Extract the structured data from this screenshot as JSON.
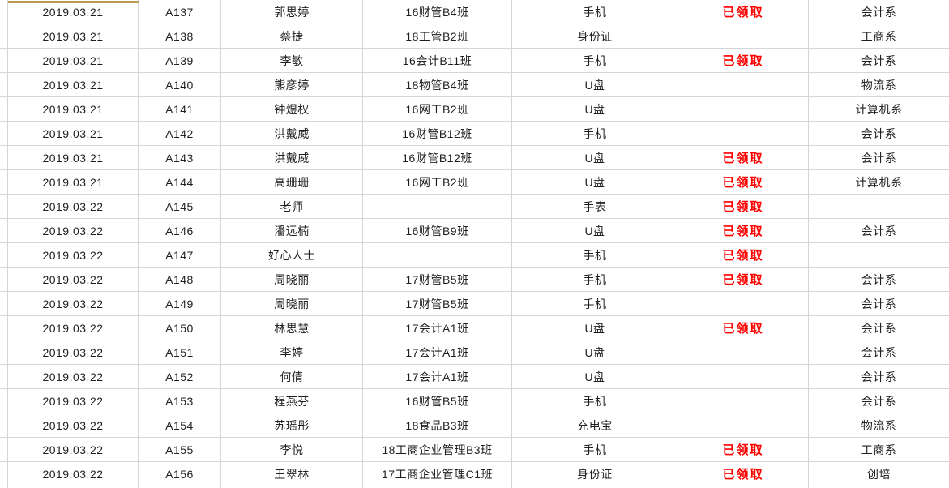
{
  "table": {
    "columns": [
      {
        "key": "date",
        "name": "date"
      },
      {
        "key": "id",
        "name": "item-id"
      },
      {
        "key": "name",
        "name": "person-name"
      },
      {
        "key": "class",
        "name": "class"
      },
      {
        "key": "item",
        "name": "item-type"
      },
      {
        "key": "status",
        "name": "claim-status"
      },
      {
        "key": "dept",
        "name": "department"
      }
    ],
    "rows": [
      {
        "date": "2019.03.21",
        "id": "A137",
        "name": "郭思婷",
        "class": "16财管B4班",
        "item": "手机",
        "status": "已领取",
        "dept": "会计系"
      },
      {
        "date": "2019.03.21",
        "id": "A138",
        "name": "蔡捷",
        "class": "18工管B2班",
        "item": "身份证",
        "status": "",
        "dept": "工商系"
      },
      {
        "date": "2019.03.21",
        "id": "A139",
        "name": "李敏",
        "class": "16会计B11班",
        "item": "手机",
        "status": "已领取",
        "dept": "会计系"
      },
      {
        "date": "2019.03.21",
        "id": "A140",
        "name": "熊彦婷",
        "class": "18物管B4班",
        "item": "U盘",
        "status": "",
        "dept": "物流系"
      },
      {
        "date": "2019.03.21",
        "id": "A141",
        "name": "钟煜权",
        "class": "16网工B2班",
        "item": "U盘",
        "status": "",
        "dept": "计算机系"
      },
      {
        "date": "2019.03.21",
        "id": "A142",
        "name": "洪戴威",
        "class": "16财管B12班",
        "item": "手机",
        "status": "",
        "dept": "会计系"
      },
      {
        "date": "2019.03.21",
        "id": "A143",
        "name": "洪戴威",
        "class": "16财管B12班",
        "item": "U盘",
        "status": "已领取",
        "dept": "会计系"
      },
      {
        "date": "2019.03.21",
        "id": "A144",
        "name": "高珊珊",
        "class": "16网工B2班",
        "item": "U盘",
        "status": "已领取",
        "dept": "计算机系"
      },
      {
        "date": "2019.03.22",
        "id": "A145",
        "name": "老师",
        "class": "",
        "item": "手表",
        "status": "已领取",
        "dept": ""
      },
      {
        "date": "2019.03.22",
        "id": "A146",
        "name": "潘远楠",
        "class": "16财管B9班",
        "item": "U盘",
        "status": "已领取",
        "dept": "会计系"
      },
      {
        "date": "2019.03.22",
        "id": "A147",
        "name": "好心人士",
        "class": "",
        "item": "手机",
        "status": "已领取",
        "dept": ""
      },
      {
        "date": "2019.03.22",
        "id": "A148",
        "name": "周晓丽",
        "class": "17财管B5班",
        "item": "手机",
        "status": "已领取",
        "dept": "会计系"
      },
      {
        "date": "2019.03.22",
        "id": "A149",
        "name": "周晓丽",
        "class": "17财管B5班",
        "item": "手机",
        "status": "",
        "dept": "会计系"
      },
      {
        "date": "2019.03.22",
        "id": "A150",
        "name": "林思慧",
        "class": "17会计A1班",
        "item": "U盘",
        "status": "已领取",
        "dept": "会计系"
      },
      {
        "date": "2019.03.22",
        "id": "A151",
        "name": "李婷",
        "class": "17会计A1班",
        "item": "U盘",
        "status": "",
        "dept": "会计系"
      },
      {
        "date": "2019.03.22",
        "id": "A152",
        "name": "何倩",
        "class": "17会计A1班",
        "item": "U盘",
        "status": "",
        "dept": "会计系"
      },
      {
        "date": "2019.03.22",
        "id": "A153",
        "name": "程燕芬",
        "class": "16财管B5班",
        "item": "手机",
        "status": "",
        "dept": "会计系"
      },
      {
        "date": "2019.03.22",
        "id": "A154",
        "name": "苏瑶彤",
        "class": "18食品B3班",
        "item": "充电宝",
        "status": "",
        "dept": "物流系"
      },
      {
        "date": "2019.03.22",
        "id": "A155",
        "name": "李悦",
        "class": "18工商企业管理B3班",
        "item": "手机",
        "status": "已领取",
        "dept": "工商系"
      },
      {
        "date": "2019.03.22",
        "id": "A156",
        "name": "王翠林",
        "class": "17工商企业管理C1班",
        "item": "身份证",
        "status": "已领取",
        "dept": "创培"
      }
    ],
    "claimed_label": "已领取"
  },
  "colors": {
    "background": "#ffffff",
    "gridline": "#d6d6d6",
    "text": "#1f1f1f",
    "status_red": "#fe0000",
    "gold_accent": "#bd9853"
  }
}
